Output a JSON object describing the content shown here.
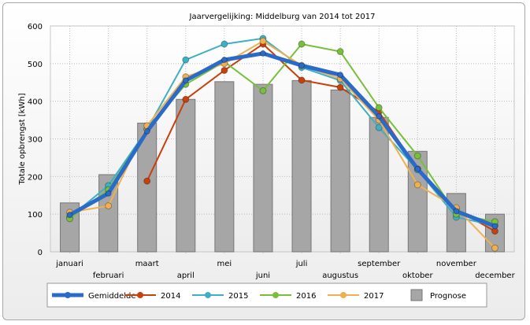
{
  "chart_data": {
    "type": "bar+line",
    "title": "Jaarvergelijking: Middelburg van 2014 tot 2017",
    "ylabel": "Totale opbrengst [kWh]",
    "xlabel": "",
    "ylim": [
      0,
      600
    ],
    "yticks": [
      0,
      100,
      200,
      300,
      400,
      500,
      600
    ],
    "grid": true,
    "legend": "bottom",
    "categories": [
      "januari",
      "februari",
      "maart",
      "april",
      "mei",
      "juni",
      "juli",
      "augustus",
      "september",
      "oktober",
      "november",
      "december"
    ],
    "bars": {
      "name": "Prognose",
      "color": "#a6a6a6",
      "values": [
        130,
        205,
        342,
        405,
        452,
        445,
        455,
        430,
        357,
        267,
        155,
        100
      ]
    },
    "series": [
      {
        "name": "2014",
        "color": "#c8400c",
        "values": [
          null,
          null,
          188,
          405,
          482,
          552,
          456,
          437,
          372,
          220,
          112,
          55
        ]
      },
      {
        "name": "2015",
        "color": "#3eb0c4",
        "values": [
          92,
          176,
          325,
          510,
          552,
          567,
          490,
          455,
          330,
          218,
          92,
          70
        ]
      },
      {
        "name": "2016",
        "color": "#78c03a",
        "values": [
          88,
          165,
          325,
          445,
          505,
          428,
          552,
          532,
          383,
          255,
          100,
          80
        ]
      },
      {
        "name": "2017",
        "color": "#f0b050",
        "values": [
          105,
          122,
          335,
          465,
          500,
          560,
          495,
          460,
          350,
          178,
          117,
          10
        ]
      },
      {
        "name": "Gemiddelde",
        "color": "#2a6ac8",
        "values": [
          98,
          155,
          320,
          455,
          510,
          527,
          495,
          470,
          360,
          220,
          108,
          68
        ]
      }
    ],
    "legend_order": [
      "Gemiddelde",
      "2014",
      "2015",
      "2016",
      "2017",
      "Prognose"
    ]
  }
}
